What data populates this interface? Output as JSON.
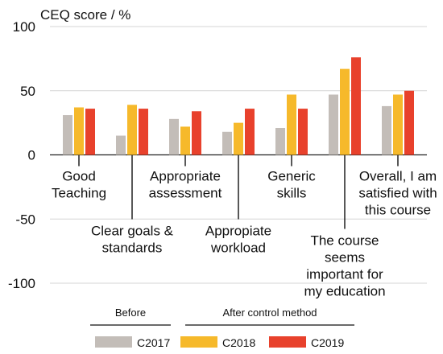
{
  "chart_data": {
    "type": "bar",
    "ylabel": "CEQ score / %",
    "ylim": [
      -100,
      100
    ],
    "yticks": [
      100,
      50,
      0,
      -50,
      -100
    ],
    "grid": true,
    "categories": [
      [
        "Good",
        "Teaching"
      ],
      [
        "Clear goals &",
        "standards"
      ],
      [
        "Appropriate",
        "assessment"
      ],
      [
        "Appropiate",
        "workload"
      ],
      [
        "Generic",
        "skills"
      ],
      [
        "The course",
        "seems",
        "important for",
        "my education"
      ],
      [
        "Overall, I am",
        "satisfied with",
        "this course"
      ]
    ],
    "label_placement": [
      "above",
      "below",
      "above",
      "below",
      "above",
      "below",
      "above"
    ],
    "series": [
      {
        "name": "C2017",
        "color": "#c3bdb8",
        "values": [
          31,
          15,
          28,
          18,
          21,
          47,
          38
        ]
      },
      {
        "name": "C2018",
        "color": "#f6b92b",
        "values": [
          37,
          39,
          22,
          25,
          47,
          67,
          47
        ]
      },
      {
        "name": "C2019",
        "color": "#e8412c",
        "values": [
          36,
          36,
          34,
          36,
          36,
          76,
          50
        ]
      }
    ],
    "legend": {
      "placement": "bottom",
      "groups": [
        {
          "label": "Before",
          "series": [
            "C2017"
          ]
        },
        {
          "label": "After control method",
          "series": [
            "C2018",
            "C2019"
          ]
        }
      ]
    }
  }
}
